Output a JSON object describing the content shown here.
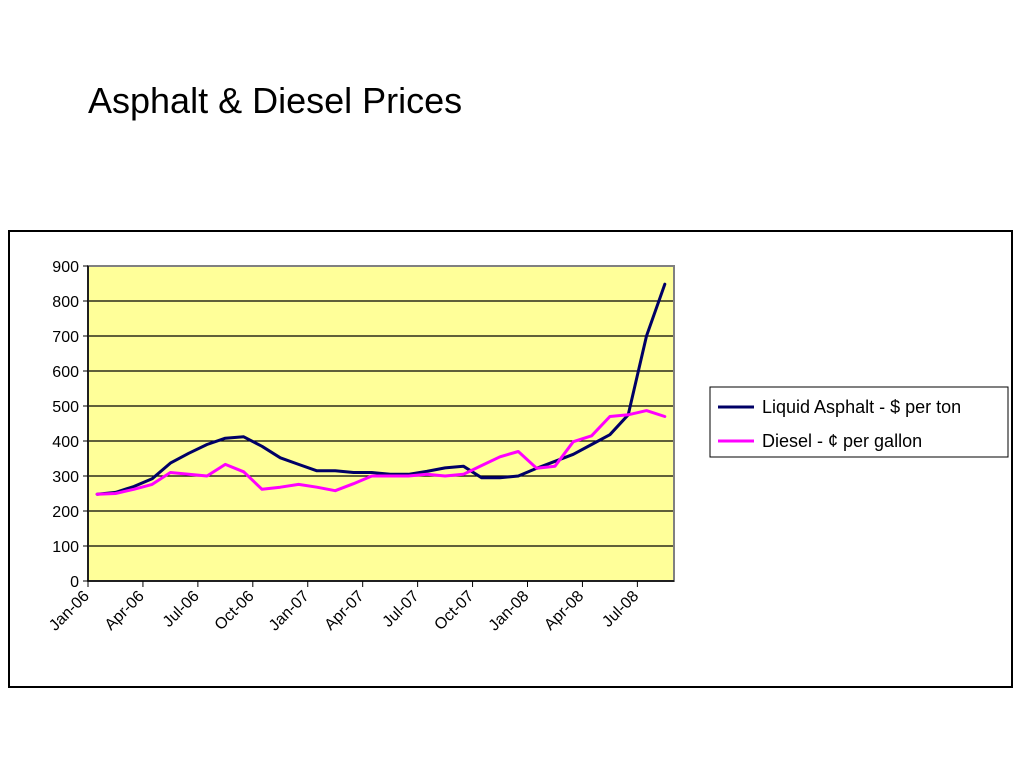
{
  "slide": {
    "title": "Asphalt & Diesel Prices"
  },
  "chart_data": {
    "type": "line",
    "title": "",
    "xlabel": "",
    "ylabel": "",
    "ylim": [
      0,
      900
    ],
    "y_ticks": [
      0,
      100,
      200,
      300,
      400,
      500,
      600,
      700,
      800,
      900
    ],
    "x_tick_labels": [
      "Jan-06",
      "Apr-06",
      "Jul-06",
      "Oct-06",
      "Jan-07",
      "Apr-07",
      "Jul-07",
      "Oct-07",
      "Jan-08",
      "Apr-08",
      "Jul-08"
    ],
    "grid": "horizontal",
    "plot_background": "#ffff99",
    "legend_position": "right",
    "x": [
      "Jan-06",
      "Feb-06",
      "Mar-06",
      "Apr-06",
      "May-06",
      "Jun-06",
      "Jul-06",
      "Aug-06",
      "Sep-06",
      "Oct-06",
      "Nov-06",
      "Dec-06",
      "Jan-07",
      "Feb-07",
      "Mar-07",
      "Apr-07",
      "May-07",
      "Jun-07",
      "Jul-07",
      "Aug-07",
      "Sep-07",
      "Oct-07",
      "Nov-07",
      "Dec-07",
      "Jan-08",
      "Feb-08",
      "Mar-08",
      "Apr-08",
      "May-08",
      "Jun-08",
      "Jul-08",
      "Aug-08"
    ],
    "series": [
      {
        "name": "Liquid Asphalt - $ per ton",
        "color": "#000066",
        "values": [
          248,
          253,
          270,
          292,
          337,
          365,
          390,
          408,
          412,
          385,
          352,
          333,
          315,
          315,
          310,
          310,
          305,
          305,
          313,
          323,
          328,
          295,
          295,
          300,
          322,
          342,
          362,
          390,
          418,
          475,
          700,
          848
        ]
      },
      {
        "name": "Diesel - ¢ per gallon",
        "color": "#ff00ff",
        "values": [
          248,
          250,
          262,
          276,
          310,
          305,
          300,
          333,
          312,
          262,
          268,
          276,
          268,
          258,
          278,
          300,
          300,
          300,
          305,
          300,
          305,
          330,
          355,
          370,
          322,
          328,
          398,
          415,
          470,
          475,
          487,
          470
        ]
      }
    ]
  }
}
